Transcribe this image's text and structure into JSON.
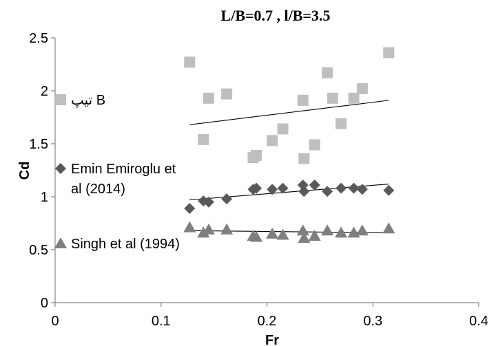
{
  "chart_data": {
    "type": "scatter",
    "title": "L/B=0.7 , l/B=3.5",
    "xlabel": "Fr",
    "ylabel": "Cd",
    "xlim": [
      0,
      0.4
    ],
    "ylim": [
      0,
      2.5
    ],
    "x_ticks": [
      "0",
      "0.1",
      "0.2",
      "0.3",
      "0.4"
    ],
    "y_ticks": [
      "0",
      "0.5",
      "1",
      "1.5",
      "2",
      "2.5"
    ],
    "grid": false,
    "legend_position": "left",
    "series": [
      {
        "name": "تیپ B",
        "marker": "square",
        "color": "#BFBFBF",
        "points": [
          [
            0.127,
            2.27
          ],
          [
            0.14,
            1.54
          ],
          [
            0.145,
            1.93
          ],
          [
            0.162,
            1.97
          ],
          [
            0.187,
            1.37
          ],
          [
            0.19,
            1.39
          ],
          [
            0.205,
            1.53
          ],
          [
            0.215,
            1.64
          ],
          [
            0.234,
            1.91
          ],
          [
            0.235,
            1.36
          ],
          [
            0.245,
            1.49
          ],
          [
            0.257,
            2.17
          ],
          [
            0.262,
            1.93
          ],
          [
            0.27,
            1.69
          ],
          [
            0.282,
            1.93
          ],
          [
            0.29,
            2.02
          ],
          [
            0.315,
            2.36
          ]
        ],
        "trendline": [
          [
            0.127,
            1.68
          ],
          [
            0.315,
            1.91
          ]
        ],
        "trend_color": "#000000"
      },
      {
        "name": "Emin Emiroglu et al (2014)",
        "name_lines": [
          "Emin Emiroglu et",
          "al (2014)"
        ],
        "marker": "diamond",
        "color": "#595959",
        "points": [
          [
            0.127,
            0.89
          ],
          [
            0.14,
            0.96
          ],
          [
            0.145,
            0.95
          ],
          [
            0.162,
            0.98
          ],
          [
            0.187,
            1.07
          ],
          [
            0.19,
            1.08
          ],
          [
            0.205,
            1.07
          ],
          [
            0.215,
            1.08
          ],
          [
            0.234,
            1.11
          ],
          [
            0.235,
            1.05
          ],
          [
            0.245,
            1.11
          ],
          [
            0.257,
            1.05
          ],
          [
            0.27,
            1.08
          ],
          [
            0.282,
            1.08
          ],
          [
            0.29,
            1.07
          ],
          [
            0.315,
            1.06
          ]
        ],
        "trendline": [
          [
            0.127,
            0.97
          ],
          [
            0.315,
            1.12
          ]
        ],
        "trend_color": "#000000"
      },
      {
        "name": "Singh et al (1994)",
        "marker": "triangle",
        "color": "#7F7F7F",
        "points": [
          [
            0.127,
            0.71
          ],
          [
            0.14,
            0.66
          ],
          [
            0.145,
            0.69
          ],
          [
            0.162,
            0.69
          ],
          [
            0.187,
            0.63
          ],
          [
            0.19,
            0.62
          ],
          [
            0.205,
            0.65
          ],
          [
            0.215,
            0.64
          ],
          [
            0.234,
            0.68
          ],
          [
            0.235,
            0.61
          ],
          [
            0.245,
            0.63
          ],
          [
            0.257,
            0.68
          ],
          [
            0.27,
            0.66
          ],
          [
            0.282,
            0.66
          ],
          [
            0.29,
            0.68
          ],
          [
            0.315,
            0.7
          ]
        ],
        "trendline": [
          [
            0.127,
            0.68
          ],
          [
            0.315,
            0.66
          ]
        ],
        "trend_color": "#000000"
      }
    ]
  }
}
